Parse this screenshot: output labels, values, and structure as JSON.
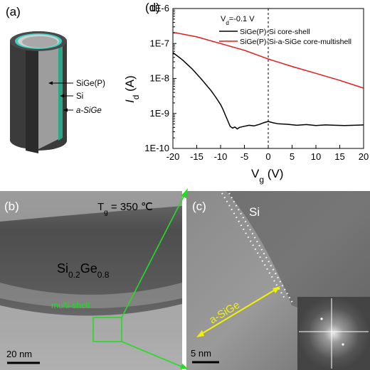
{
  "panels": {
    "a": {
      "label": "(a)",
      "layers": [
        "SiGe(P)",
        "Si",
        "a-SiGe"
      ]
    },
    "b": {
      "label": "(b)",
      "temperature": "T",
      "temperature_sub": "g",
      "temperature_value": " = 350 ℃",
      "composition_si": "Si",
      "composition_si_sub": "0.2",
      "composition_ge": "Ge",
      "composition_ge_sub": "0.8",
      "shell_label": "multi-shell",
      "scale_bar": "20 nm"
    },
    "c": {
      "label": "(c)",
      "si_label": "Si",
      "asige_label": "a-SiGe",
      "scale_bar": "5 nm"
    },
    "d": {
      "label": "(d)"
    }
  },
  "colors": {
    "black_curve": "#000000",
    "red_curve": "#e31a1c",
    "green_callout": "#22dd22",
    "yellow_arrow": "#f2f200",
    "shell_teal": "#2aa88a"
  },
  "chart_data": {
    "type": "line",
    "title": "",
    "annotation": "V_d=-0.1 V",
    "annotation_main": "V",
    "annotation_sub": "d",
    "annotation_rest": "=-0.1 V",
    "xlabel_main": "V",
    "xlabel_sub": "g",
    "xlabel_unit": " (V)",
    "ylabel_main": "I",
    "ylabel_sub": "d",
    "ylabel_unit": " (A)",
    "xlim": [
      -20,
      20
    ],
    "ylim_log10": [
      -10,
      -6
    ],
    "y_scale": "log",
    "xticks": [
      "-20",
      "-15",
      "-10",
      "-5",
      "0",
      "5",
      "10",
      "15",
      "20"
    ],
    "yticks": [
      "1E-10",
      "1E-9",
      "1E-8",
      "1E-7",
      "1E-6"
    ],
    "reference_line_x": 0,
    "legend_position": "top-right",
    "series": [
      {
        "name": "SiGe(P)-Si core-shell",
        "color": "#000000",
        "x": [
          -20,
          -18,
          -16,
          -14,
          -12,
          -11,
          -10,
          -9.5,
          -9,
          -8.5,
          -8,
          -7.5,
          -7,
          -6.5,
          -6,
          -5,
          -4,
          -3,
          -2,
          -1,
          0,
          1,
          2,
          4,
          6,
          8,
          10,
          12,
          14,
          16,
          18,
          20
        ],
        "y": [
          5.5e-08,
          3.4e-08,
          1.9e-08,
          9.5e-09,
          4.5e-09,
          2.9e-09,
          1.8e-09,
          1.3e-09,
          9e-10,
          6.2e-10,
          4.3e-10,
          3.8e-10,
          4.1e-10,
          3.6e-10,
          4e-10,
          4.3e-10,
          4.6e-10,
          4.4e-10,
          4.8e-10,
          5.4e-10,
          5.9e-10,
          5.4e-10,
          5.1e-10,
          4.9e-10,
          4.6e-10,
          4.8e-10,
          4.5e-10,
          4.7e-10,
          4.6e-10,
          4.5e-10,
          4.6e-10,
          4.7e-10
        ]
      },
      {
        "name": "SiGe(P)-Si-a-SiGe core-multishell",
        "color": "#e31a1c",
        "x": [
          -20,
          -15,
          -10,
          -5,
          0,
          5,
          10,
          15,
          20
        ],
        "y": [
          2.1e-07,
          1.55e-07,
          1e-07,
          6.4e-08,
          3.6e-08,
          2.2e-08,
          1.4e-08,
          8.8e-09,
          5.3e-09
        ]
      }
    ]
  }
}
